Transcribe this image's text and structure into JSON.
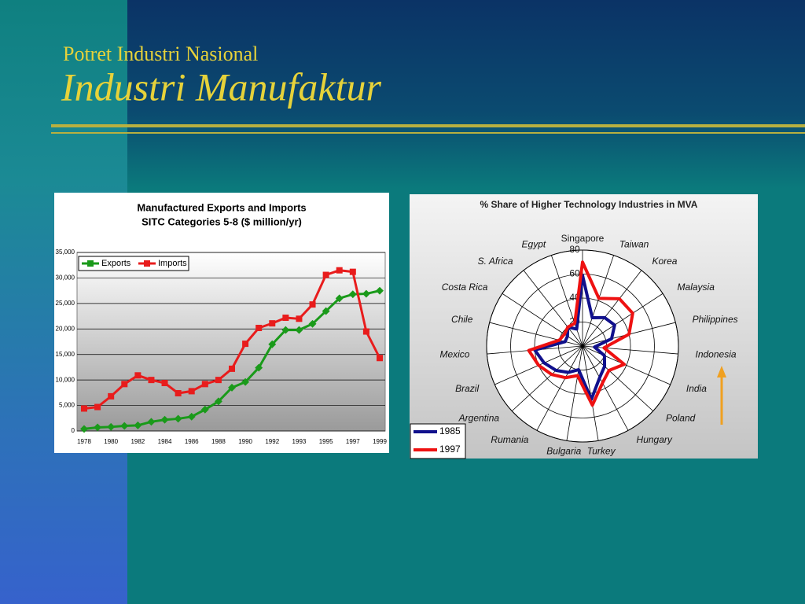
{
  "slide": {
    "subtitle": "Potret Industri Nasional",
    "title": "Industri Manufaktur"
  },
  "chart_data": [
    {
      "type": "line",
      "title": "Manufactured Exports and Imports",
      "subtitle": "SITC Categories 5-8 ($ million/yr)",
      "categories": [
        "1978",
        null,
        "1980",
        null,
        "1982",
        null,
        "1984",
        null,
        "1986",
        null,
        "1988",
        null,
        "1990",
        null,
        "1992",
        null,
        "1993",
        null,
        "1995",
        null,
        "1997",
        null,
        "1999"
      ],
      "series": [
        {
          "name": "Exports",
          "color": "#1a9a1a",
          "values": [
            400,
            700,
            800,
            1000,
            1100,
            1800,
            2200,
            2400,
            2800,
            4200,
            5800,
            8500,
            9600,
            12400,
            17000,
            19800,
            19800,
            21000,
            23500,
            26000,
            26800,
            26900,
            27500
          ]
        },
        {
          "name": "Imports",
          "color": "#e81c1c",
          "values": [
            4400,
            4700,
            6800,
            9200,
            10900,
            10000,
            9400,
            7400,
            7800,
            9200,
            10000,
            12200,
            17100,
            20200,
            21100,
            22200,
            22000,
            24800,
            30600,
            31500,
            31200,
            19500,
            14300
          ]
        }
      ],
      "ylim": [
        0,
        35000
      ],
      "yticks": [
        0,
        {
          "value": 5000,
          "label": "5,000"
        },
        {
          "value": 10000,
          "label": "10,000"
        },
        {
          "value": 15000,
          "label": "15,000"
        },
        {
          "value": 20000,
          "label": "20,000"
        },
        {
          "value": 25000,
          "label": "25,000"
        },
        {
          "value": 30000,
          "label": "30,000"
        },
        {
          "value": 35000,
          "label": "35,000"
        }
      ],
      "grid": true,
      "legend": "top-left"
    },
    {
      "type": "radar",
      "title": "% Share of Higher Technology Industries in MVA",
      "categories": [
        "Singapore",
        "Taiwan",
        "Korea",
        "Malaysia",
        "Philippines",
        "Indonesia",
        "India",
        "Poland",
        "Hungary",
        "Turkey",
        "Bulgaria",
        "Rumania",
        "Argentina",
        "Brazil",
        "Mexico",
        "Chile",
        "Costa Rica",
        "S. Africa",
        "Egypt"
      ],
      "series": [
        {
          "name": "1985",
          "color": "#10108c",
          "values": [
            59,
            25,
            30,
            32,
            25,
            10,
            20,
            25,
            30,
            45,
            20,
            25,
            30,
            35,
            40,
            15,
            15,
            20,
            15
          ]
        },
        {
          "name": "1997",
          "color": "#ee1111",
          "values": [
            70,
            42,
            50,
            50,
            40,
            18,
            38,
            30,
            35,
            50,
            25,
            30,
            35,
            40,
            45,
            20,
            18,
            20,
            20
          ]
        }
      ],
      "rlim": [
        0,
        80
      ],
      "rticks": [
        20,
        40,
        60,
        80
      ],
      "grid": true,
      "legend": "bottom-left"
    }
  ]
}
